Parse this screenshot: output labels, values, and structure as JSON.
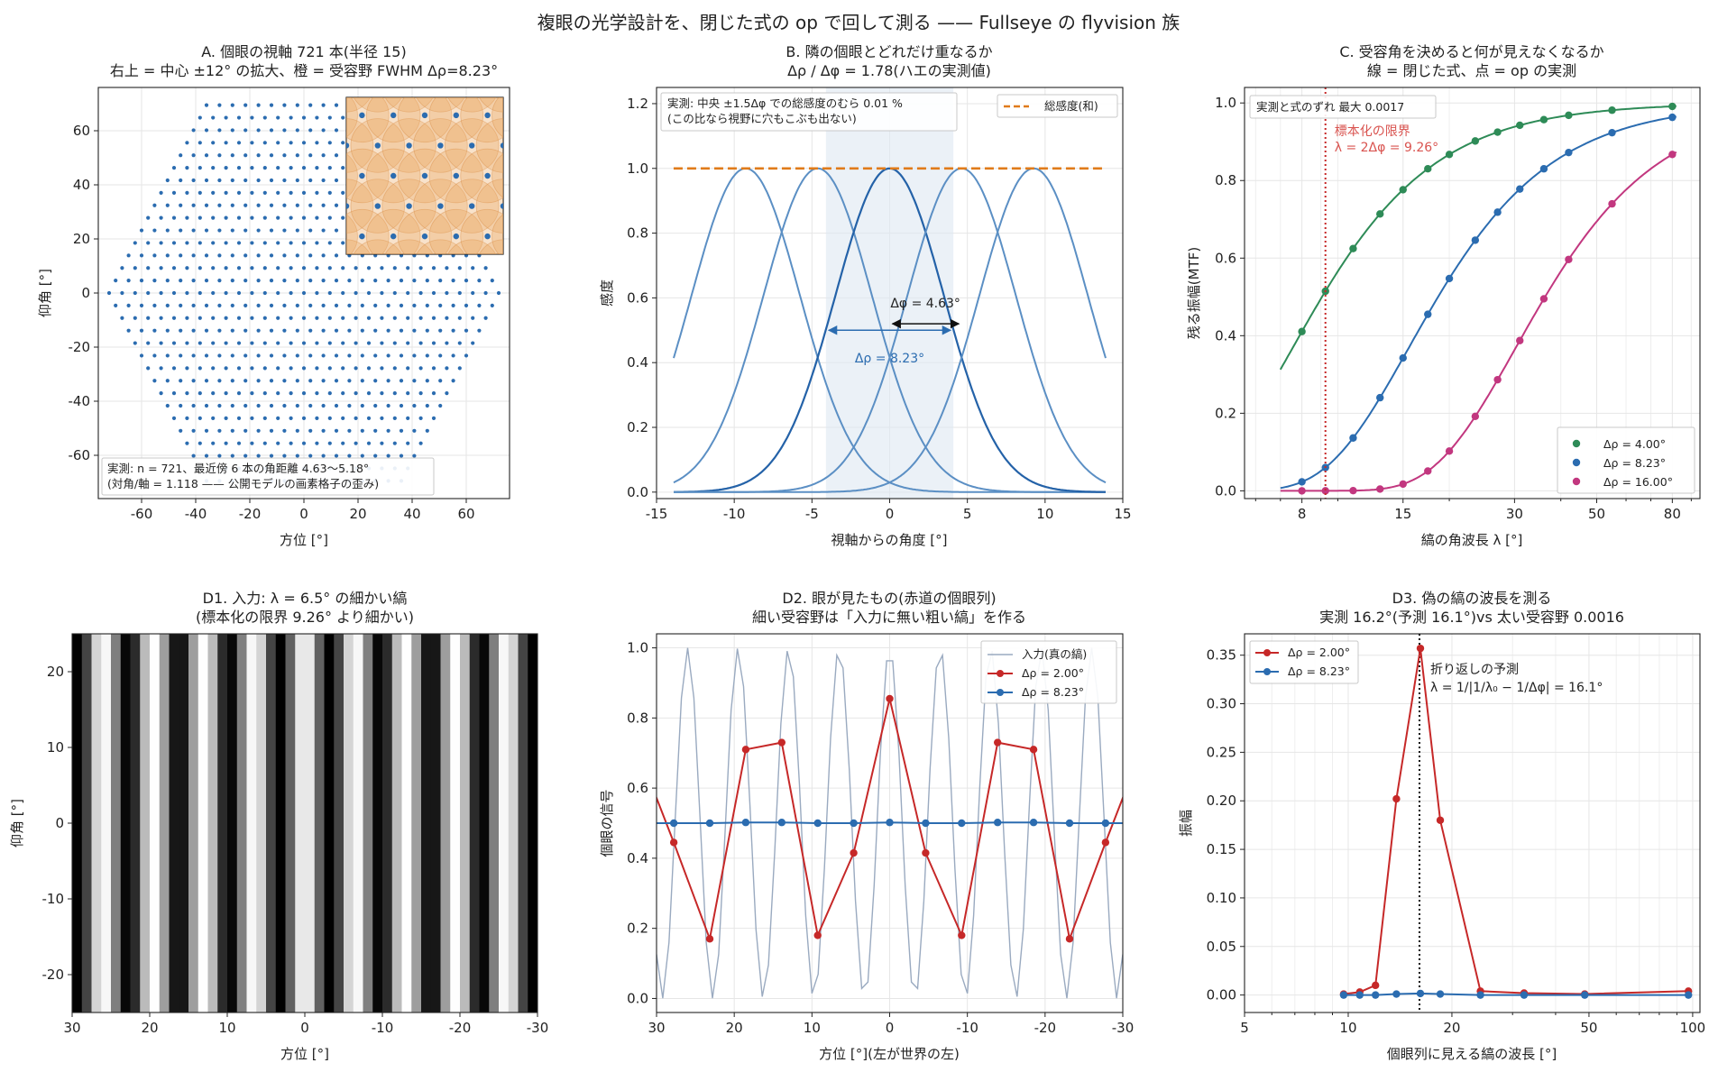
{
  "figure": {
    "suptitle": "複眼の光学設計を、閉じた式の op で回して測る —— Fullseye の flyvision 族",
    "colors": {
      "blue": "#2b6cb0",
      "orange": "#e0a060",
      "red": "#c62828",
      "green": "#2e8b57",
      "magenta": "#c2377f",
      "paleblue": "#9aaac0",
      "grid": "#e6e6e6"
    }
  },
  "chart_data": [
    {
      "id": "A",
      "type": "scatter",
      "title": "A. 個眼の視軸 721 本(半径 15)",
      "subtitle": "右上 = 中心 ±12°  の拡大、橙 = 受容野 FWHM Δρ=8.23°",
      "xlabel": "方位 [°]",
      "ylabel": "仰角 [°]",
      "xlim": [
        -76,
        76
      ],
      "ylim": [
        -76,
        76
      ],
      "xticks": [
        -60,
        -40,
        -20,
        0,
        20,
        40,
        60
      ],
      "yticks": [
        -60,
        -40,
        -20,
        0,
        20,
        40,
        60
      ],
      "lattice": {
        "n": 721,
        "radius": 15,
        "dx": 4.8,
        "dy": 4.63
      },
      "inset": {
        "range_deg": 12,
        "fwhm_deg": 8.23
      },
      "annotation": [
        "実測: n = 721、最近傍 6 本の角距離 4.63〜5.18°",
        "(対角/軸 = 1.118 —— 公開モデルの画素格子の歪み)"
      ]
    },
    {
      "id": "B",
      "type": "line",
      "title": "B. 隣の個眼とどれだけ重なるか",
      "subtitle": "Δρ / Δφ = 1.78(ハエの実測値)",
      "xlabel": "視軸からの角度 [°]",
      "ylabel": "感度",
      "xlim": [
        -15,
        15
      ],
      "ylim": [
        -0.02,
        1.25
      ],
      "xticks": [
        -15,
        -10,
        -5,
        0,
        5,
        10,
        15
      ],
      "yticks": [
        0.0,
        0.2,
        0.4,
        0.6,
        0.8,
        1.0,
        1.2
      ],
      "centers": [
        -9.26,
        -4.63,
        0,
        4.63,
        9.26
      ],
      "fwhm": 8.23,
      "sum_level": 1.0,
      "legend": [
        "総感度(和)"
      ],
      "annotation": [
        "実測: 中央 ±1.5Δφ での総感度のむら 0.01 %",
        "(この比なら視野に穴もこぶも出ない)"
      ],
      "arrow_labels": {
        "dphi": "Δφ = 4.63°",
        "drho": "Δρ = 8.23°"
      }
    },
    {
      "id": "C",
      "type": "line",
      "title": "C. 受容角を決めると何が見えなくなるか",
      "subtitle": "線 = 閉じた式、点 = op の実測",
      "xlabel": "縞の角波長 λ [°]",
      "ylabel": "残る振幅(MTF)",
      "xscale": "log",
      "xlim": [
        5.6,
        95
      ],
      "ylim": [
        -0.02,
        1.04
      ],
      "xticks": [
        8,
        15,
        30,
        50,
        80
      ],
      "yticks": [
        0.0,
        0.2,
        0.4,
        0.6,
        0.8,
        1.0
      ],
      "limit": {
        "x": 9.26,
        "label": [
          "標本化の限界",
          "λ = 2Δφ = 9.26°"
        ]
      },
      "points_x": [
        8,
        9.26,
        11,
        13,
        15,
        17.5,
        20,
        23.5,
        27,
        31,
        36,
        42,
        55,
        80
      ],
      "series": [
        {
          "name": "Δρ = 4.00°",
          "fwhm": 4.0,
          "color": "#2e8b57"
        },
        {
          "name": "Δρ = 8.23°",
          "fwhm": 8.23,
          "color": "#2b6cb0"
        },
        {
          "name": "Δρ = 16.00°",
          "fwhm": 16.0,
          "color": "#c2377f"
        }
      ],
      "annotation": "実測と式のずれ 最大 0.0017"
    },
    {
      "id": "D1",
      "type": "heatmap",
      "title": "D1. 入力: λ = 6.5°  の細かい縞",
      "subtitle": "(標本化の限界 9.26°  より細かい)",
      "xlabel": "方位 [°]",
      "ylabel": "仰角 [°]",
      "xlim": [
        30,
        -30
      ],
      "ylim": [
        -25,
        25
      ],
      "xticks": [
        30,
        20,
        10,
        0,
        -10,
        -20,
        -30
      ],
      "yticks": [
        20,
        10,
        0,
        -10,
        -20
      ],
      "wavelength": 6.5
    },
    {
      "id": "D2",
      "type": "line",
      "title": "D2. 眼が見たもの(赤道の個眼列)",
      "subtitle": "細い受容野は「入力に無い粗い縞」を作る",
      "xlabel": "方位 [°](左が世界の左)",
      "ylabel": "個眼の信号",
      "xlim": [
        30,
        -30
      ],
      "ylim": [
        -0.04,
        1.04
      ],
      "xticks": [
        30,
        20,
        10,
        0,
        -10,
        -20,
        -30
      ],
      "yticks": [
        0.0,
        0.2,
        0.4,
        0.6,
        0.8,
        1.0
      ],
      "input": {
        "name": "入力(真の縞)",
        "wavelength": 6.5
      },
      "x": [
        32.41,
        27.78,
        23.15,
        18.52,
        13.89,
        9.26,
        4.63,
        0,
        -4.63,
        -9.26,
        -13.89,
        -18.52,
        -23.15,
        -27.78,
        -32.41
      ],
      "series": [
        {
          "name": "Δρ = 2.00°",
          "values": [
            0.71,
            0.445,
            0.17,
            0.71,
            0.73,
            0.18,
            0.415,
            0.855,
            0.415,
            0.18,
            0.73,
            0.71,
            0.17,
            0.445,
            0.71
          ],
          "color": "#c62828"
        },
        {
          "name": "Δρ = 8.23°",
          "values": [
            0.5,
            0.5,
            0.5,
            0.502,
            0.502,
            0.5,
            0.5,
            0.502,
            0.5,
            0.5,
            0.502,
            0.502,
            0.5,
            0.5,
            0.5
          ],
          "color": "#2b6cb0"
        }
      ]
    },
    {
      "id": "D3",
      "type": "line",
      "title": "D3. 偽の縞の波長を測る",
      "subtitle": "実測 16.2°(予測 16.1°)vs 太い受容野 0.0016",
      "xlabel": "個眼列に見える縞の波長 [°]",
      "ylabel": "振幅",
      "xscale": "log",
      "xlim": [
        5,
        105
      ],
      "ylim": [
        -0.018,
        0.372
      ],
      "xticks": [
        5,
        10,
        20,
        50,
        100
      ],
      "yticks": [
        0.0,
        0.05,
        0.1,
        0.15,
        0.2,
        0.25,
        0.3,
        0.35
      ],
      "prediction": {
        "x": 16.1,
        "label": [
          "折り返しの予測",
          "λ = 1/|1/λ₀ − 1/Δφ| = 16.1°"
        ]
      },
      "x": [
        9.7,
        10.8,
        12.0,
        13.8,
        16.2,
        18.5,
        24.2,
        32.4,
        48.6,
        97.2
      ],
      "series": [
        {
          "name": "Δρ = 2.00°",
          "values": [
            0.001,
            0.003,
            0.01,
            0.202,
            0.357,
            0.18,
            0.004,
            0.002,
            0.001,
            0.004
          ],
          "color": "#c62828"
        },
        {
          "name": "Δρ = 8.23°",
          "values": [
            0.0,
            0.0,
            0.0,
            0.001,
            0.0016,
            0.001,
            0.0,
            0.0,
            0.0,
            0.0
          ],
          "color": "#2b6cb0"
        }
      ]
    }
  ]
}
